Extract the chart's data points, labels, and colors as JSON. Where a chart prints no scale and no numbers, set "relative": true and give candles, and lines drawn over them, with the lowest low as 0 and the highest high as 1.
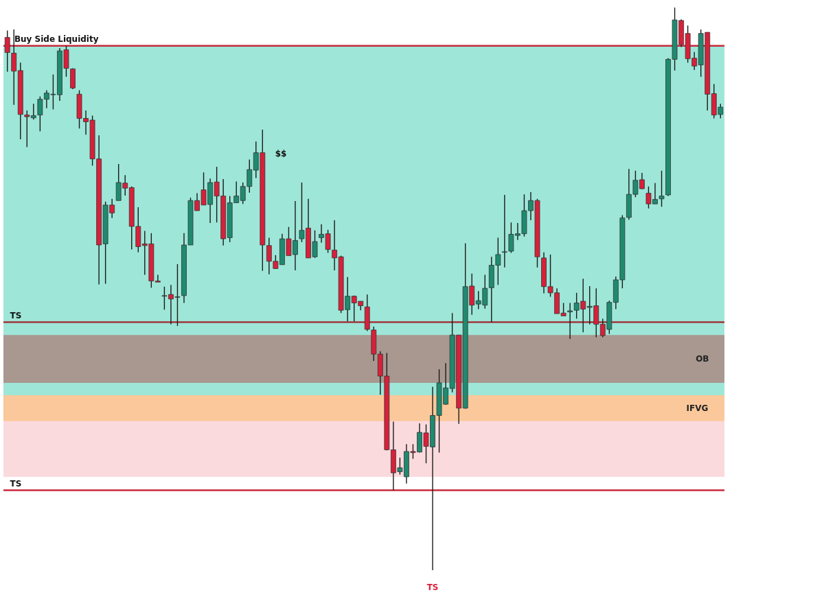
{
  "chart_data": {
    "type": "candlestick",
    "relative": true,
    "tick_labels": false,
    "categories": [
      null,
      null,
      null,
      null,
      null,
      null,
      null,
      null,
      null,
      null,
      null,
      null,
      null,
      null,
      null,
      null,
      null,
      null,
      null,
      null,
      null,
      null,
      null,
      null,
      null,
      null,
      null,
      null,
      null,
      null,
      null,
      null,
      null,
      null,
      null,
      null,
      null,
      null,
      null,
      null,
      null,
      null,
      null,
      null,
      null,
      null,
      null,
      null,
      null,
      null,
      null,
      null,
      null,
      null,
      null,
      null,
      null,
      null,
      null,
      null,
      null,
      null,
      null,
      null,
      null,
      null,
      null,
      null,
      null,
      null,
      null,
      null,
      null,
      null,
      null,
      null,
      null,
      null,
      null,
      null,
      null,
      null,
      null,
      null,
      null,
      null,
      null,
      null,
      null,
      null,
      null,
      null,
      null,
      null,
      null,
      null,
      null,
      null,
      null,
      null,
      null,
      null,
      null,
      null,
      null,
      null,
      null,
      null,
      null,
      null
    ],
    "ohlc": [
      [
        0.947,
        0.959,
        0.886,
        0.92
      ],
      [
        0.919,
        0.961,
        0.827,
        0.887
      ],
      [
        0.888,
        0.902,
        0.766,
        0.81
      ],
      [
        0.809,
        0.817,
        0.752,
        0.806
      ],
      [
        0.804,
        0.829,
        0.801,
        0.808
      ],
      [
        0.809,
        0.842,
        0.78,
        0.837
      ],
      [
        0.837,
        0.853,
        0.821,
        0.848
      ],
      [
        0.845,
        0.881,
        0.819,
        0.846
      ],
      [
        0.845,
        0.928,
        0.834,
        0.923
      ],
      [
        0.925,
        0.932,
        0.877,
        0.892
      ],
      [
        0.891,
        0.892,
        0.855,
        0.857
      ],
      [
        0.846,
        0.853,
        0.785,
        0.803
      ],
      [
        0.803,
        0.817,
        0.774,
        0.797
      ],
      [
        0.8,
        0.808,
        0.719,
        0.731
      ],
      [
        0.731,
        0.773,
        0.508,
        0.578
      ],
      [
        0.58,
        0.655,
        0.509,
        0.649
      ],
      [
        0.649,
        0.66,
        0.626,
        0.635
      ],
      [
        0.657,
        0.722,
        0.657,
        0.689
      ],
      [
        0.688,
        0.702,
        0.666,
        0.679
      ],
      [
        0.68,
        0.682,
        0.57,
        0.611
      ],
      [
        0.611,
        0.645,
        0.565,
        0.575
      ],
      [
        0.58,
        0.603,
        0.525,
        0.577
      ],
      [
        0.58,
        0.599,
        0.502,
        0.514
      ],
      [
        0.514,
        0.525,
        0.512,
        0.512
      ],
      [
        0.487,
        0.504,
        0.463,
        0.488
      ],
      [
        0.49,
        0.507,
        0.437,
        0.482
      ],
      [
        0.485,
        0.544,
        0.434,
        0.486
      ],
      [
        0.488,
        0.599,
        0.475,
        0.578
      ],
      [
        0.578,
        0.662,
        0.578,
        0.657
      ],
      [
        0.657,
        0.67,
        0.639,
        0.639
      ],
      [
        0.676,
        0.707,
        0.649,
        0.649
      ],
      [
        0.65,
        0.696,
        0.617,
        0.689
      ],
      [
        0.69,
        0.717,
        0.618,
        0.665
      ],
      [
        0.665,
        0.695,
        0.577,
        0.589
      ],
      [
        0.591,
        0.665,
        0.583,
        0.653
      ],
      [
        0.653,
        0.691,
        0.653,
        0.665
      ],
      [
        0.657,
        0.689,
        0.651,
        0.682
      ],
      [
        0.682,
        0.73,
        0.671,
        0.712
      ],
      [
        0.711,
        0.762,
        0.697,
        0.742
      ],
      [
        0.742,
        0.783,
        0.532,
        0.578
      ],
      [
        0.577,
        0.591,
        0.526,
        0.549
      ],
      [
        0.549,
        0.56,
        0.536,
        0.536
      ],
      [
        0.543,
        0.598,
        0.543,
        0.589
      ],
      [
        0.589,
        0.61,
        0.559,
        0.559
      ],
      [
        0.561,
        0.656,
        0.533,
        0.586
      ],
      [
        0.589,
        0.689,
        0.583,
        0.604
      ],
      [
        0.608,
        0.66,
        0.555,
        0.555
      ],
      [
        0.557,
        0.604,
        0.555,
        0.584
      ],
      [
        0.591,
        0.615,
        0.582,
        0.597
      ],
      [
        0.598,
        0.605,
        0.564,
        0.57
      ],
      [
        0.569,
        0.622,
        0.533,
        0.555
      ],
      [
        0.557,
        0.559,
        0.457,
        0.462
      ],
      [
        0.463,
        0.521,
        0.442,
        0.487
      ],
      [
        0.487,
        0.488,
        0.442,
        0.475
      ],
      [
        0.478,
        0.478,
        0.462,
        0.47
      ],
      [
        0.468,
        0.49,
        0.425,
        0.428
      ],
      [
        0.427,
        0.433,
        0.372,
        0.384
      ],
      [
        0.384,
        0.389,
        0.312,
        0.345
      ],
      [
        0.345,
        0.386,
        0.213,
        0.214
      ],
      [
        0.214,
        0.264,
        0.142,
        0.173
      ],
      [
        0.175,
        0.2,
        0.17,
        0.182
      ],
      [
        0.166,
        0.224,
        0.154,
        0.211
      ],
      [
        0.211,
        0.224,
        0.198,
        0.209
      ],
      [
        0.21,
        0.261,
        0.209,
        0.245
      ],
      [
        0.244,
        0.259,
        0.19,
        0.22
      ],
      [
        0.219,
        0.326,
        0,
        0.275
      ],
      [
        0.275,
        0.357,
        0.209,
        0.333
      ],
      [
        0.295,
        0.368,
        0.294,
        0.324
      ],
      [
        0.323,
        0.457,
        0.316,
        0.418
      ],
      [
        0.418,
        0.418,
        0.26,
        0.288
      ],
      [
        0.288,
        0.581,
        0.287,
        0.504
      ],
      [
        0.505,
        0.527,
        0.454,
        0.471
      ],
      [
        0.473,
        0.496,
        0.464,
        0.479
      ],
      [
        0.471,
        0.525,
        0.465,
        0.501
      ],
      [
        0.502,
        0.557,
        0.441,
        0.542
      ],
      [
        0.542,
        0.591,
        0.507,
        0.561
      ],
      [
        0.565,
        0.667,
        0.538,
        0.566
      ],
      [
        0.567,
        0.618,
        0.564,
        0.597
      ],
      [
        0.595,
        0.617,
        0.587,
        0.598
      ],
      [
        0.598,
        0.668,
        0.593,
        0.639
      ],
      [
        0.639,
        0.672,
        0.622,
        0.657
      ],
      [
        0.657,
        0.66,
        0.538,
        0.557
      ],
      [
        0.555,
        0.565,
        0.492,
        0.504
      ],
      [
        0.504,
        0.561,
        0.486,
        0.493
      ],
      [
        0.493,
        0.501,
        0.456,
        0.456
      ],
      [
        0.457,
        0.475,
        0.452,
        0.452
      ],
      [
        0.459,
        0.475,
        0.411,
        0.461
      ],
      [
        0.462,
        0.493,
        0.447,
        0.475
      ],
      [
        0.478,
        0.518,
        0.423,
        0.464
      ],
      [
        0.467,
        0.505,
        0.437,
        0.469
      ],
      [
        0.47,
        0.501,
        0.414,
        0.437
      ],
      [
        0.437,
        0.447,
        0.414,
        0.417
      ],
      [
        0.428,
        0.479,
        0.42,
        0.476
      ],
      [
        0.476,
        0.522,
        0.464,
        0.516
      ],
      [
        0.516,
        0.631,
        0.501,
        0.626
      ],
      [
        0.627,
        0.713,
        0.623,
        0.668
      ],
      [
        0.668,
        0.71,
        0.663,
        0.693
      ],
      [
        0.694,
        0.706,
        0.677,
        0.678
      ],
      [
        0.67,
        0.682,
        0.643,
        0.651
      ],
      [
        0.651,
        0.688,
        0.651,
        0.659
      ],
      [
        0.66,
        0.71,
        0.646,
        0.665
      ],
      [
        0.667,
        0.91,
        0.665,
        0.908
      ],
      [
        0.908,
        1,
        0.888,
        0.978
      ],
      [
        0.977,
        0.979,
        0.93,
        0.934
      ],
      [
        0.954,
        0.968,
        0.902,
        0.909
      ],
      [
        0.91,
        0.921,
        0.889,
        0.896
      ],
      [
        0.898,
        0.961,
        0.877,
        0.954
      ],
      [
        0.956,
        0.956,
        0.817,
        0.846
      ],
      [
        0.847,
        0.864,
        0.803,
        0.809
      ],
      [
        0.81,
        0.829,
        0.803,
        0.823
      ]
    ],
    "colors": [
      "#d8203a",
      "#d8203a",
      "#d8203a",
      "#d8203a",
      "#1f8a6f",
      "#1f8a6f",
      "#1f8a6f",
      "#1f8a6f",
      "#1f8a6f",
      "#d8203a",
      "#d8203a",
      "#d8203a",
      "#d8203a",
      "#d8203a",
      "#d8203a",
      "#1f8a6f",
      "#d8203a",
      "#1f8a6f",
      "#d8203a",
      "#d8203a",
      "#d8203a",
      "#d8203a",
      "#d8203a",
      "#d8203a",
      "#1f8a6f",
      "#d8203a",
      "#1f8a6f",
      "#1f8a6f",
      "#1f8a6f",
      "#d8203a",
      "#d8203a",
      "#1f8a6f",
      "#d8203a",
      "#d8203a",
      "#1f8a6f",
      "#1f8a6f",
      "#1f8a6f",
      "#1f8a6f",
      "#1f8a6f",
      "#d8203a",
      "#d8203a",
      "#d8203a",
      "#1f8a6f",
      "#d8203a",
      "#1f8a6f",
      "#1f8a6f",
      "#d8203a",
      "#1f8a6f",
      "#1f8a6f",
      "#d8203a",
      "#d8203a",
      "#d8203a",
      "#1f8a6f",
      "#d8203a",
      "#d8203a",
      "#d8203a",
      "#d8203a",
      "#d8203a",
      "#d8203a",
      "#d8203a",
      "#1f8a6f",
      "#1f8a6f",
      "#d8203a",
      "#1f8a6f",
      "#d8203a",
      "#1f8a6f",
      "#1f8a6f",
      "#1f8a6f",
      "#1f8a6f",
      "#d8203a",
      "#1f8a6f",
      "#d8203a",
      "#1f8a6f",
      "#1f8a6f",
      "#1f8a6f",
      "#1f8a6f",
      "#1f8a6f",
      "#1f8a6f",
      "#1f8a6f",
      "#1f8a6f",
      "#1f8a6f",
      "#d8203a",
      "#d8203a",
      "#d8203a",
      "#d8203a",
      "#d8203a",
      "#1f8a6f",
      "#1f8a6f",
      "#d8203a",
      "#1f8a6f",
      "#d8203a",
      "#d8203a",
      "#1f8a6f",
      "#1f8a6f",
      "#1f8a6f",
      "#1f8a6f",
      "#1f8a6f",
      "#d8203a",
      "#d8203a",
      "#1f8a6f",
      "#1f8a6f",
      "#1f8a6f",
      "#1f8a6f",
      "#d8203a",
      "#d8203a",
      "#d8203a",
      "#1f8a6f",
      "#d8203a",
      "#d8203a",
      "#1f8a6f"
    ],
    "bands": [
      {
        "axis": "y",
        "from": 0.311,
        "to": 0.932,
        "color": "#9ee6d8"
      },
      {
        "axis": "y",
        "from": 0.166,
        "to": 0.311,
        "color": "#fadadd"
      },
      {
        "axis": "y",
        "from": 0.333,
        "to": 0.418,
        "color": "#a89890",
        "label": "OB"
      },
      {
        "axis": "y",
        "from": 0.265,
        "to": 0.311,
        "color": "#fac89a",
        "label": "IFVG"
      }
    ],
    "ref_lines": [
      {
        "axis": "y",
        "value": 0.932,
        "label": "Buy Side Liquidity",
        "color": "#c8283c"
      },
      {
        "axis": "y",
        "value": 0.441,
        "label": "TS",
        "color": "#a0343c"
      },
      {
        "axis": "y",
        "value": 0.142,
        "label": "TS",
        "color": "#c8283c"
      }
    ],
    "annotations": [
      "$$",
      {
        "text": "TS",
        "y": 0
      }
    ]
  }
}
